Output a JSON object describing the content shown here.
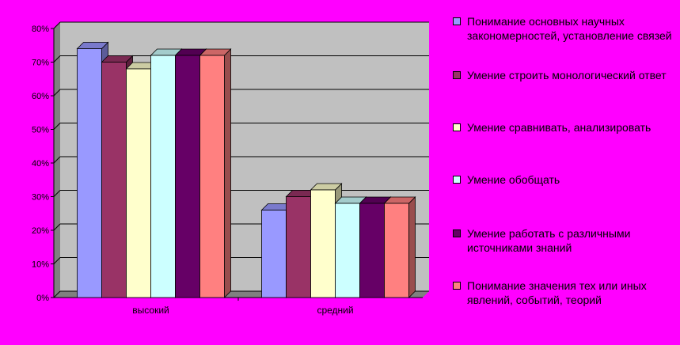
{
  "chart_data": {
    "type": "bar",
    "categories": [
      "высокий",
      "средний"
    ],
    "series": [
      {
        "name": "Понимание основных научных закономерностей, установление связей",
        "values": [
          74,
          26
        ],
        "color": "#9999ff"
      },
      {
        "name": "Умение строить монологический ответ",
        "values": [
          70,
          30
        ],
        "color": "#993366"
      },
      {
        "name": "Умение сравнивать, анализировать",
        "values": [
          68,
          32
        ],
        "color": "#ffffcc"
      },
      {
        "name": "Умение обобщать",
        "values": [
          72,
          28
        ],
        "color": "#ccffff"
      },
      {
        "name": "Умение работать с различными источниками знаний",
        "values": [
          72,
          28
        ],
        "color": "#660066"
      },
      {
        "name": "Понимание значения тех или иных явлений, событий, теорий",
        "values": [
          72,
          28
        ],
        "color": "#ff8080"
      }
    ],
    "y_ticks": [
      "0%",
      "10%",
      "20%",
      "30%",
      "40%",
      "50%",
      "60%",
      "70%",
      "80%"
    ],
    "ylim": [
      0,
      80
    ],
    "grid": true,
    "legend_position": "right",
    "colors": {
      "page_background": "#ff00ff",
      "plot_wall": "#c0c0c0",
      "plot_floor": "#808080",
      "gridline": "#000000"
    }
  }
}
